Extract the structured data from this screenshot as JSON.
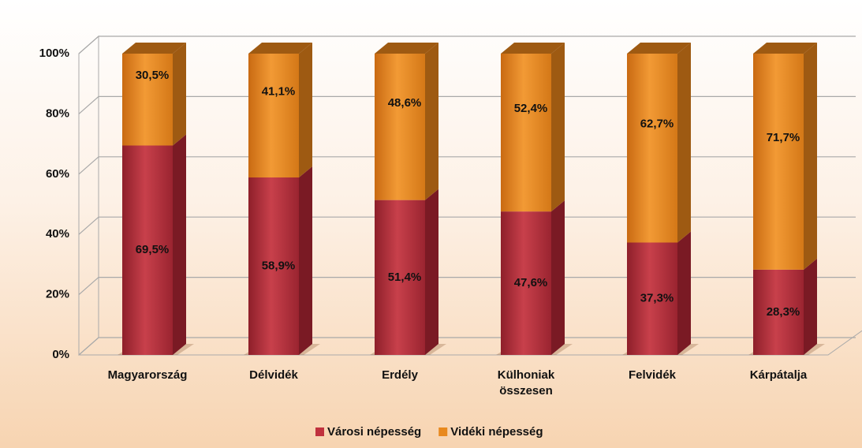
{
  "chart_data": {
    "type": "stacked_bar_3d",
    "categories": [
      "Magyarország",
      "Délvidék",
      "Erdély",
      "Külhoniak összesen",
      "Felvidék",
      "Kárpátalja"
    ],
    "series": [
      {
        "name": "Városi népesség",
        "color": "#c0313e",
        "values": [
          69.5,
          58.9,
          51.4,
          47.6,
          37.3,
          28.3
        ],
        "value_labels": [
          "69,5%",
          "58,9%",
          "51,4%",
          "47,6%",
          "37,3%",
          "28,3%"
        ]
      },
      {
        "name": "Vidéki népesség",
        "color": "#e8891e",
        "values": [
          30.5,
          41.1,
          48.6,
          52.4,
          62.7,
          71.7
        ],
        "value_labels": [
          "30,5%",
          "41,1%",
          "48,6%",
          "52,4%",
          "62,7%",
          "71,7%"
        ]
      }
    ],
    "ylim": [
      0,
      100
    ],
    "yticks": [
      {
        "value": 0,
        "label": "0%"
      },
      {
        "value": 20,
        "label": "20%"
      },
      {
        "value": 40,
        "label": "40%"
      },
      {
        "value": 60,
        "label": "60%"
      },
      {
        "value": 80,
        "label": "80%"
      },
      {
        "value": 100,
        "label": "100%"
      }
    ],
    "grid": true,
    "legend": "bottom"
  }
}
